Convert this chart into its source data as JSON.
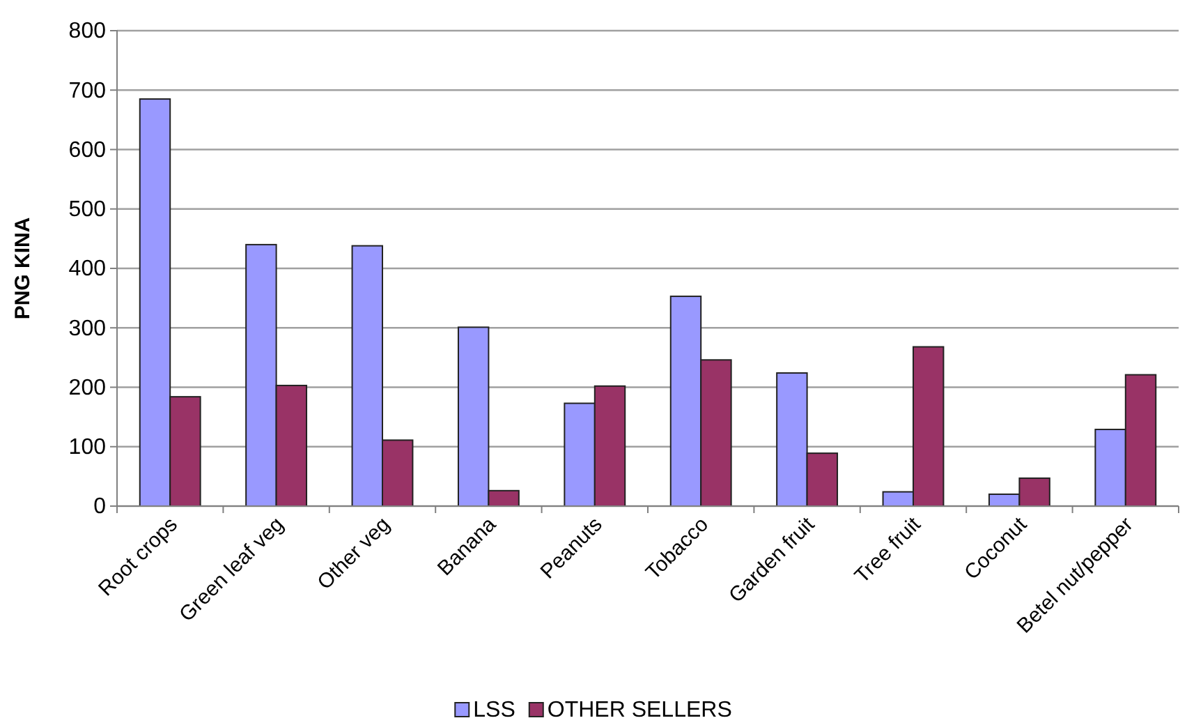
{
  "chart_data": {
    "type": "bar",
    "ylabel": "PNG KINA",
    "categories": [
      "Root crops",
      "Green leaf veg",
      "Other veg",
      "Banana",
      "Peanuts",
      "Tobacco",
      "Garden fruit",
      "Tree fruit",
      "Coconut",
      "Betel nut/pepper"
    ],
    "series": [
      {
        "name": "LSS",
        "color": "#9999ff",
        "values": [
          685,
          440,
          438,
          301,
          173,
          353,
          224,
          24,
          20,
          129
        ]
      },
      {
        "name": "OTHER SELLERS",
        "color": "#993366",
        "values": [
          184,
          203,
          111,
          26,
          202,
          246,
          89,
          268,
          47,
          221
        ]
      }
    ],
    "ylim": [
      0,
      800
    ],
    "yticks": [
      0,
      100,
      200,
      300,
      400,
      500,
      600,
      700,
      800
    ],
    "grid": "y",
    "legend": "bottom"
  }
}
